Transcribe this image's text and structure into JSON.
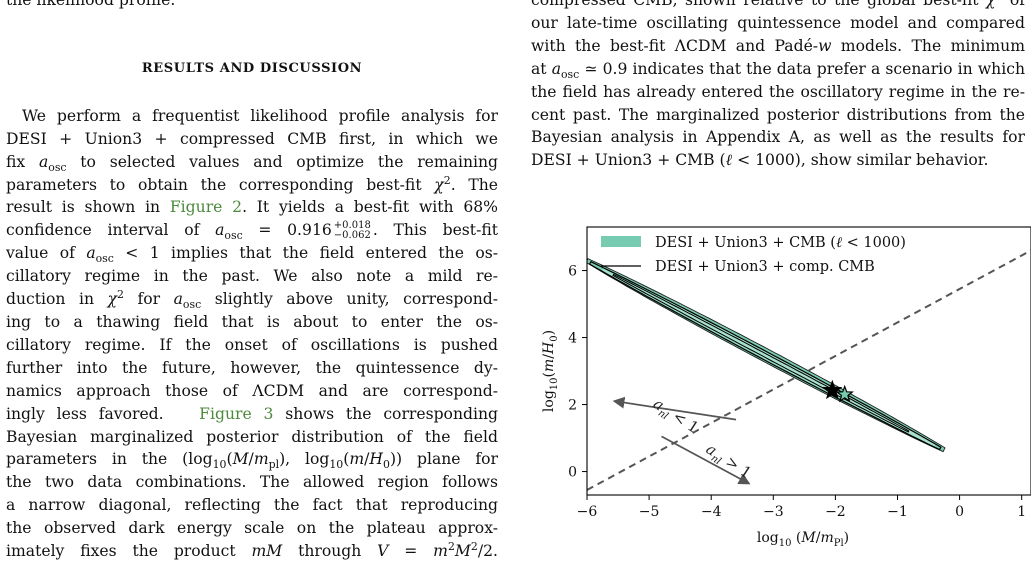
{
  "left_column": {
    "intro_tail": "the likelihood profile.",
    "heading": "RESULTS AND DISCUSSION",
    "paragraph_lines": [
      "We perform a frequentist likelihood profile analysis for",
      "DESI + Union3 + compressed CMB first, in which we",
      "fix a_osc to selected values and optimize the remaining",
      "parameters to obtain the corresponding best-fit χ². The",
      "result is shown in Figure 2. It yields a best-fit with 68%",
      "confidence interval of a_osc = 0.916 +0.018 −0.062. This best-fit",
      "value of a_osc < 1 implies that the field entered the os-",
      "cillatory regime in the past. We also note a mild re-",
      "duction in χ² for a_osc slightly above unity, correspond-",
      "ing to a thawing field that is about to enter the os-",
      "cillatory regime. If the onset of oscillations is pushed",
      "further into the future, however, the quintessence dy-",
      "namics approach those of ΛCDM and are correspond-",
      "ingly less favored. Figure 3 shows the corresponding",
      "Bayesian marginalized posterior distribution of the field",
      "parameters in the (log10(M/m_pl), log10(m/H0)) plane for",
      "the two data combinations. The allowed region follows",
      "a narrow diagonal, reflecting the fact that reproducing",
      "the observed dark energy scale on the plateau approx-",
      "imately fixes the product mM through V = m²M²/2."
    ],
    "refs": {
      "fig2": "Figure 2",
      "fig3": "Figure 3"
    }
  },
  "right_column": {
    "lines": [
      "compressed CMB, shown relative to the global best-fit χ² of",
      "our late-time oscillating quintessence model and compared",
      "with the best-fit ΛCDM and Padé-w models. The minimum",
      "at a_osc ≃ 0.9 indicates that the data prefer a scenario in which",
      "the field has already entered the oscillatory regime in the re-",
      "cent past. The marginalized posterior distributions from the",
      "Bayesian analysis in Appendix A, as well as the results for",
      "DESI + Union3 + CMB (ℓ < 1000), show similar behavior."
    ]
  },
  "chart_data": {
    "type": "contour",
    "xlabel": "log10(M/m_Pl)",
    "ylabel": "log10(m/H0)",
    "xlim": [
      -6,
      1.15
    ],
    "ylim": [
      -0.7,
      7.3
    ],
    "xticks": [
      "−6",
      "−5",
      "−4",
      "−3",
      "−2",
      "−1",
      "0",
      "1"
    ],
    "yticks": [
      "0",
      "2",
      "4",
      "6"
    ],
    "legend": {
      "placement": "top-left",
      "entries": [
        {
          "label": "DESI + Union3 + CMB (ℓ < 1000)",
          "style": "filled",
          "color": "#76cbb0"
        },
        {
          "label": "DESI + Union3 + comp. CMB",
          "style": "line",
          "color": "#000000"
        }
      ]
    },
    "contour_axis": {
      "start": [
        -6.0,
        6.3
      ],
      "end": [
        -0.25,
        0.65
      ]
    },
    "boundary_line": {
      "start": [
        -6.0,
        -0.55
      ],
      "end": [
        1.15,
        6.6
      ],
      "style": "dashed",
      "color": "#555555"
    },
    "best_fit_points": [
      {
        "x": -2.05,
        "y": 2.42,
        "marker": "star",
        "color": "#000000"
      },
      {
        "x": -1.85,
        "y": 2.3,
        "marker": "star",
        "color": "#76cbb0"
      }
    ],
    "annotations": [
      {
        "text": "a_nl < 1",
        "arrow_from": [
          -3.6,
          1.55
        ],
        "arrow_to": [
          -5.55,
          2.1
        ]
      },
      {
        "text": "a_nl > 1",
        "arrow_from": [
          -4.8,
          1.05
        ],
        "arrow_to": [
          -3.4,
          -0.35
        ]
      }
    ]
  }
}
